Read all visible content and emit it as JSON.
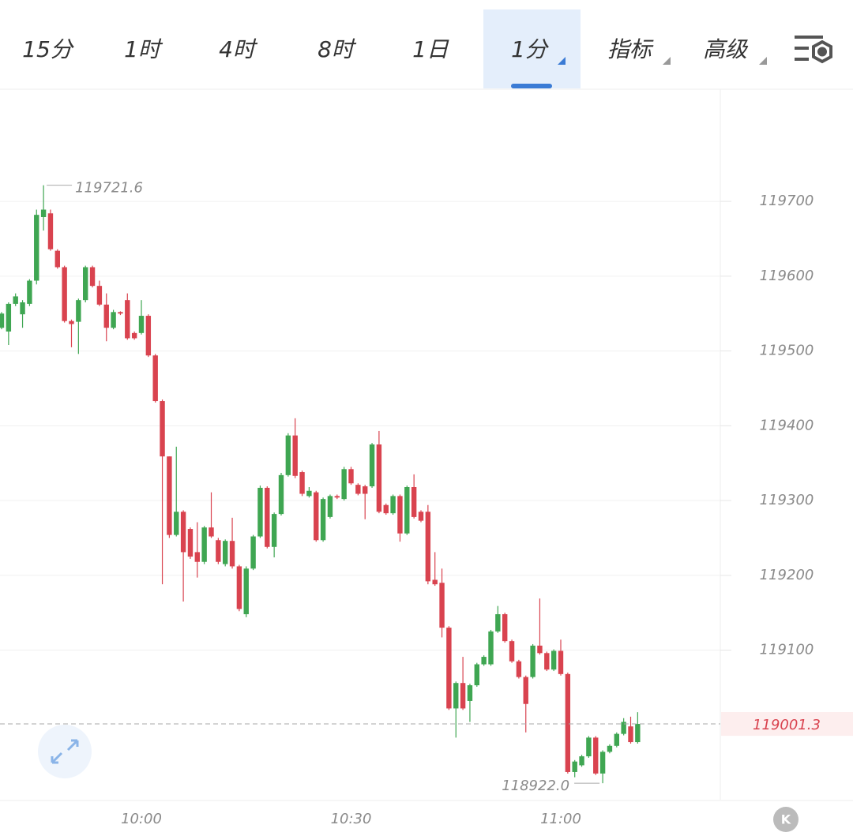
{
  "toolbar": {
    "tabs": [
      "15分",
      "1时",
      "4时",
      "8时",
      "1日",
      "1分",
      "指标",
      "高级"
    ],
    "active": 5
  },
  "chart_data": {
    "type": "candlestick",
    "categories": [
      null,
      null,
      null,
      null,
      null,
      null,
      null,
      null,
      null,
      null,
      null,
      null,
      null,
      null,
      null,
      null,
      null,
      null,
      null,
      null,
      "10:00",
      null,
      null,
      null,
      null,
      null,
      null,
      null,
      null,
      null,
      null,
      null,
      null,
      null,
      null,
      null,
      null,
      null,
      null,
      null,
      null,
      null,
      null,
      null,
      null,
      null,
      null,
      null,
      null,
      null,
      "10:30",
      null,
      null,
      null,
      null,
      null,
      null,
      null,
      null,
      null,
      null,
      null,
      null,
      null,
      null,
      null,
      null,
      null,
      null,
      null,
      null,
      null,
      null,
      null,
      null,
      null,
      null,
      null,
      null,
      null,
      "11:00",
      null,
      null,
      null,
      null,
      null,
      null,
      null,
      null,
      null,
      null,
      null
    ],
    "open": [
      119531,
      119526,
      119563,
      119549,
      119563,
      119594,
      119679,
      119684,
      119634,
      119612,
      119540,
      119539,
      119568,
      119612,
      119587,
      119562,
      119531,
      119552,
      119568,
      119524,
      119524,
      119547,
      119494,
      119433,
      119359,
      119254,
      119285,
      119262,
      119231,
      119218,
      119264,
      119247,
      119215,
      119246,
      119212,
      119148,
      119209,
      119252,
      119317,
      119238,
      119282,
      119334,
      119387,
      119338,
      119306,
      119311,
      119247,
      119278,
      119306,
      119302,
      119342,
      119321,
      119319,
      119319,
      119375,
      119294,
      119283,
      119306,
      119256,
      119318,
      119285,
      119285,
      119194,
      119190,
      119130,
      119022,
      119056,
      119032,
      119053,
      119081,
      119081,
      119125,
      119148,
      119112,
      119085,
      119064,
      119064,
      119106,
      119096,
      119074,
      119099,
      119068,
      118937,
      118946,
      118958,
      118983,
      118935,
      118964,
      118972,
      118988,
      118998,
      118977
    ],
    "high": [
      119552,
      119565,
      119577,
      119568,
      119596,
      119689,
      119721.6,
      119689,
      119636,
      119614,
      119542,
      119570,
      119614,
      119614,
      119594,
      119577,
      119555,
      119553,
      119577,
      119526,
      119568,
      119549,
      119496,
      119435,
      119359,
      119372,
      119287,
      119264,
      119271,
      119266,
      119311,
      119250,
      119248,
      119277,
      119214,
      119212,
      119254,
      119320,
      119319,
      119284,
      119337,
      119390,
      119410,
      119340,
      119318,
      119313,
      119304,
      119308,
      119308,
      119345,
      119345,
      119323,
      119321,
      119377,
      119393,
      119296,
      119308,
      119308,
      119320,
      119335,
      119287,
      119294,
      119231,
      119209,
      119132,
      119058,
      119091,
      119055,
      119083,
      119093,
      119127,
      119159,
      119150,
      119114,
      119087,
      119066,
      119108,
      119169,
      119098,
      119101,
      119114,
      119070,
      118953,
      118960,
      118985,
      118985,
      118966,
      118974,
      118990,
      119009,
      119011,
      119017
    ],
    "low": [
      119529,
      119508,
      119560,
      119531,
      119560,
      119589,
      119661,
      119634,
      119610,
      119538,
      119505,
      119496,
      119565,
      119585,
      119560,
      119513,
      119529,
      119548,
      119515,
      119515,
      119522,
      119492,
      119431,
      119188,
      119250,
      119252,
      119165,
      119222,
      119197,
      119215,
      119250,
      119215,
      119212,
      119209,
      119152,
      119144,
      119207,
      119250,
      119236,
      119224,
      119280,
      119332,
      119330,
      119306,
      119304,
      119245,
      119245,
      119276,
      119302,
      119300,
      119321,
      119307,
      119275,
      119317,
      119283,
      119281,
      119281,
      119245,
      119254,
      119276,
      119271,
      119188,
      119186,
      119117,
      119020,
      118983,
      119020,
      119004,
      119051,
      119079,
      119079,
      119123,
      119110,
      119083,
      119062,
      118990,
      119062,
      119094,
      119072,
      119072,
      119066,
      118935,
      118930,
      118944,
      118956,
      118933,
      118922.0,
      118962,
      118970,
      118986,
      118975,
      118975
    ],
    "close": [
      119550,
      119563,
      119573,
      119565,
      119594,
      119682,
      119689,
      119636,
      119612,
      119540,
      119536,
      119568,
      119612,
      119587,
      119562,
      119531,
      119552,
      119550,
      119517,
      119517,
      119547,
      119494,
      119433,
      119359,
      119254,
      119285,
      119231,
      119225,
      119218,
      119264,
      119252,
      119218,
      119246,
      119212,
      119155,
      119209,
      119252,
      119317,
      119238,
      119282,
      119334,
      119387,
      119333,
      119309,
      119313,
      119247,
      119302,
      119306,
      119304,
      119342,
      119323,
      119309,
      119309,
      119375,
      119285,
      119283,
      119306,
      119256,
      119318,
      119278,
      119273,
      119192,
      119188,
      119130,
      119022,
      119056,
      119022,
      119053,
      119081,
      119091,
      119125,
      119148,
      119112,
      119085,
      119064,
      119028,
      119106,
      119096,
      119074,
      119099,
      119068,
      118937,
      118951,
      118958,
      118983,
      118935,
      118964,
      118972,
      118988,
      119004,
      118977,
      119001.3
    ],
    "up_color": "#3fa652",
    "down_color": "#d9434f",
    "ylim": [
      118900,
      119850
    ],
    "yticks": [
      119100,
      119200,
      119300,
      119400,
      119500,
      119600,
      119700
    ],
    "grid": true,
    "high_marker": 119721.6,
    "low_marker": {
      "value": 118922,
      "label": "118922.0"
    },
    "last_price": 119001.3,
    "k_button": "K"
  }
}
